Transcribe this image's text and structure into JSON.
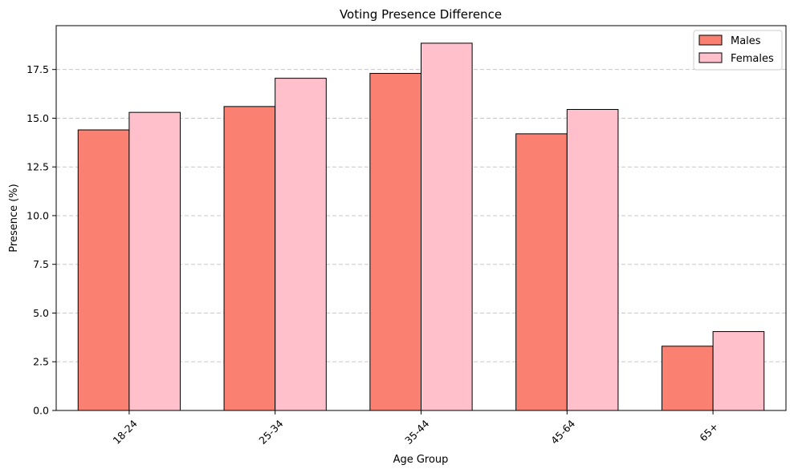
{
  "chart_data": {
    "type": "bar",
    "title": "Voting Presence Difference",
    "xlabel": "Age Group",
    "ylabel": "Presence (%)",
    "categories": [
      "18-24",
      "25-34",
      "35-44",
      "45-64",
      "65+"
    ],
    "series": [
      {
        "name": "Males",
        "values": [
          14.4,
          15.6,
          17.3,
          14.2,
          3.3
        ],
        "color": "#fa8072"
      },
      {
        "name": "Females",
        "values": [
          15.3,
          17.05,
          18.85,
          15.45,
          4.05
        ],
        "color": "#ffc0cb"
      }
    ],
    "ylim": [
      0,
      19.75
    ],
    "yticks": [
      "0.0",
      "2.5",
      "5.0",
      "7.5",
      "10.0",
      "12.5",
      "15.0",
      "17.5"
    ],
    "ytick_values": [
      0,
      2.5,
      5,
      7.5,
      10,
      12.5,
      15,
      17.5
    ],
    "grid": "horizontal dashed",
    "legend_position": "top-right",
    "xtick_rotation": 45,
    "edge_color": "#000000",
    "grid_color": "#c8c8c8"
  }
}
